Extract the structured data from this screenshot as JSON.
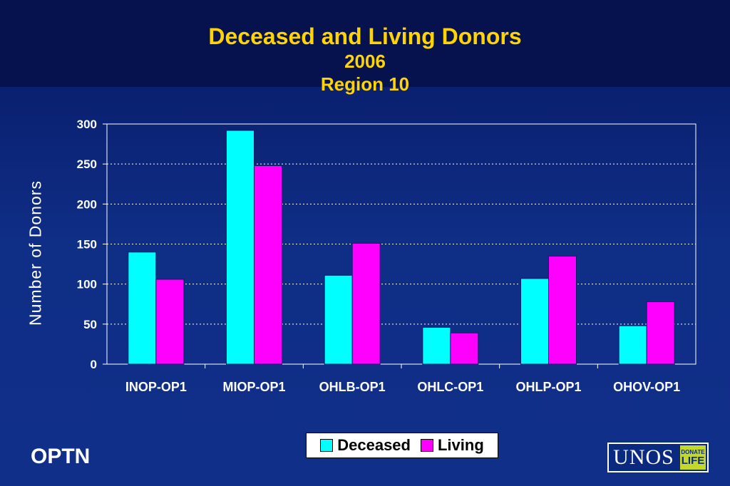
{
  "chart_data": {
    "type": "bar",
    "title": "Deceased and Living Donors",
    "subtitle_lines": [
      "2006",
      "Region 10"
    ],
    "xlabel": "",
    "ylabel": "Number of Donors",
    "ylim": [
      0,
      300
    ],
    "yticks": [
      "0",
      "50",
      "100",
      "150",
      "200",
      "250",
      "300"
    ],
    "categories": [
      "INOP-OP1",
      "MIOP-OP1",
      "OHLB-OP1",
      "OHLC-OP1",
      "OHLP-OP1",
      "OHOV-OP1"
    ],
    "series": [
      {
        "name": "Deceased",
        "color": "#00ffff",
        "values": [
          140,
          292,
          111,
          46,
          107,
          48
        ]
      },
      {
        "name": "Living",
        "color": "#ff00ff",
        "values": [
          106,
          248,
          151,
          39,
          135,
          78
        ]
      }
    ],
    "grid": true,
    "legend_position": "bottom"
  },
  "footer": {
    "org_text": "OPTN",
    "logo_text": "UNOS",
    "badge_line1": "DONATE",
    "badge_line2": "LIFE"
  }
}
